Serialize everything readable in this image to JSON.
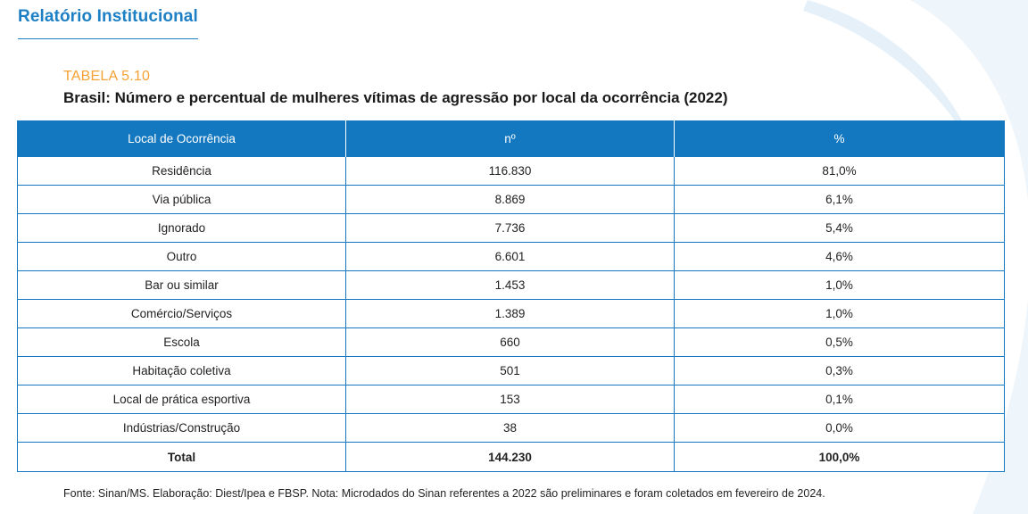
{
  "header": {
    "title": "Relatório Institucional"
  },
  "table": {
    "label": "TABELA 5.10",
    "caption": "Brasil: Número e percentual de mulheres vítimas de agressão por local da ocorrência (2022)",
    "columns": [
      "Local de Ocorrência",
      "nº",
      "%"
    ],
    "rows": [
      {
        "local": "Residência",
        "n": "116.830",
        "pct": "81,0%"
      },
      {
        "local": "Via pública",
        "n": "8.869",
        "pct": "6,1%"
      },
      {
        "local": "Ignorado",
        "n": "7.736",
        "pct": "5,4%"
      },
      {
        "local": "Outro",
        "n": "6.601",
        "pct": "4,6%"
      },
      {
        "local": "Bar ou similar",
        "n": "1.453",
        "pct": "1,0%"
      },
      {
        "local": "Comércio/Serviços",
        "n": "1.389",
        "pct": "1,0%"
      },
      {
        "local": "Escola",
        "n": "660",
        "pct": "0,5%"
      },
      {
        "local": "Habitação coletiva",
        "n": "501",
        "pct": "0,3%"
      },
      {
        "local": "Local de prática esportiva",
        "n": "153",
        "pct": "0,1%"
      },
      {
        "local": "Indústrias/Construção",
        "n": "38",
        "pct": "0,0%"
      }
    ],
    "total": {
      "local": "Total",
      "n": "144.230",
      "pct": "100,0%"
    }
  },
  "footnote": "Fonte: Sinan/MS. Elaboração: Diest/Ipea e FBSP. Nota: Microdados do Sinan referentes a 2022 são preliminares e foram coletados em fevereiro de 2024.",
  "colors": {
    "brand_blue": "#1d7fc4",
    "table_header_blue": "#1478c0",
    "label_orange": "#f5a133",
    "swoosh": "#eef5fb"
  }
}
